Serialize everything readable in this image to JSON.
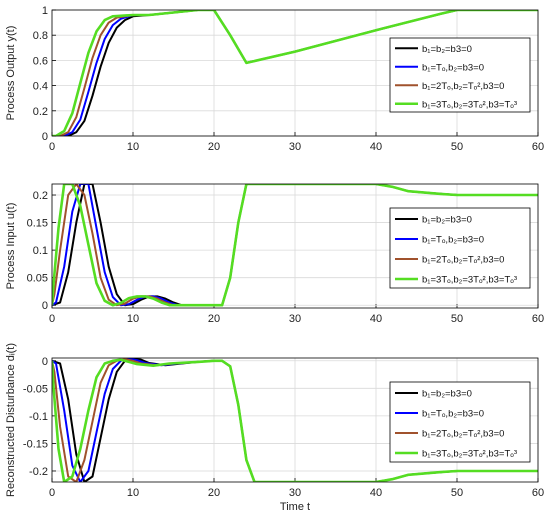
{
  "figure": {
    "xlabel": "Time t",
    "legend_labels": {
      "black": "b₁=b₂=b3=0",
      "blue": "b₁=Tₒ,b₂=b3=0",
      "brown": "b₁=2Tₒ,b₂=Tₒ²,b3=0",
      "green": "b₁=3Tₒ,b₂=3Tₒ²,b3=Tₒ³"
    },
    "colors": {
      "black": "#000000",
      "blue": "#0000ff",
      "brown": "#a0522d",
      "green": "#55dd22"
    }
  },
  "chart_data": [
    {
      "type": "line",
      "ylabel": "Process Output y(t)",
      "xlim": [
        0,
        60
      ],
      "ylim": [
        0,
        1
      ],
      "xticks": [
        0,
        10,
        20,
        30,
        40,
        50,
        60
      ],
      "yticks": [
        0,
        0.2,
        0.4,
        0.6,
        0.8,
        1
      ],
      "ytick_labels": [
        "0",
        "0.2",
        "0.4",
        "0.6",
        "0.8",
        "1"
      ],
      "grid": true,
      "legend": "right",
      "series": [
        {
          "name": "b₁=b₂=b3=0",
          "color": "#000000",
          "x": [
            0,
            2,
            3,
            4,
            5,
            6,
            7,
            8,
            9,
            10,
            12,
            15,
            18,
            20,
            22,
            24,
            30,
            40,
            48,
            50,
            60
          ],
          "y": [
            0,
            0,
            0.03,
            0.12,
            0.32,
            0.55,
            0.74,
            0.86,
            0.92,
            0.95,
            0.96,
            0.98,
            1,
            1,
            0.8,
            0.58,
            0.67,
            0.84,
            0.97,
            1,
            1
          ]
        },
        {
          "name": "b₁=Tₒ,b₂=b3=0",
          "color": "#0000ff",
          "x": [
            0,
            1.5,
            2.5,
            3.5,
            4.5,
            5.5,
            6.5,
            7.5,
            8.5,
            10,
            12,
            15,
            18,
            20,
            22,
            24,
            30,
            40,
            48,
            50,
            60
          ],
          "y": [
            0,
            0,
            0.03,
            0.13,
            0.35,
            0.58,
            0.77,
            0.88,
            0.93,
            0.96,
            0.96,
            0.98,
            1,
            1,
            0.8,
            0.58,
            0.67,
            0.84,
            0.97,
            1,
            1
          ]
        },
        {
          "name": "b₁=2Tₒ,b₂=Tₒ²,b3=0",
          "color": "#a0522d",
          "x": [
            0,
            1,
            2,
            3,
            4,
            5,
            6,
            7,
            8,
            10,
            12,
            15,
            18,
            20,
            22,
            24,
            30,
            40,
            48,
            50,
            60
          ],
          "y": [
            0,
            0,
            0.03,
            0.15,
            0.38,
            0.62,
            0.8,
            0.9,
            0.94,
            0.96,
            0.96,
            0.98,
            1,
            1,
            0.8,
            0.58,
            0.67,
            0.84,
            0.97,
            1,
            1
          ]
        },
        {
          "name": "b₁=3Tₒ,b₂=3Tₒ²,b3=Tₒ³",
          "color": "#55dd22",
          "x": [
            0,
            0.5,
            1.5,
            2.5,
            3.5,
            4.5,
            5.5,
            6.5,
            7.5,
            10,
            12,
            15,
            18,
            20,
            22,
            24,
            30,
            40,
            48,
            50,
            60
          ],
          "y": [
            0,
            0,
            0.04,
            0.18,
            0.42,
            0.66,
            0.83,
            0.92,
            0.95,
            0.96,
            0.96,
            0.98,
            1,
            1,
            0.8,
            0.58,
            0.67,
            0.84,
            0.97,
            1,
            1
          ]
        }
      ]
    },
    {
      "type": "line",
      "ylabel": "Process Input u(t)",
      "xlim": [
        0,
        60
      ],
      "ylim": [
        -0.005,
        0.22
      ],
      "xticks": [
        0,
        10,
        20,
        30,
        40,
        50,
        60
      ],
      "yticks": [
        0,
        0.05,
        0.1,
        0.15,
        0.2
      ],
      "ytick_labels": [
        "0",
        "0.05",
        "0.1",
        "0.15",
        "0.2"
      ],
      "grid": true,
      "legend": "right",
      "series": [
        {
          "name": "b₁=b₂=b3=0",
          "color": "#000000",
          "x": [
            0,
            1,
            2,
            3,
            4,
            5,
            6,
            7,
            8,
            9,
            10,
            11,
            12,
            13,
            14,
            15,
            16,
            18,
            21,
            22,
            23,
            24,
            40,
            42,
            44,
            48,
            50,
            60
          ],
          "y": [
            0,
            0.005,
            0.06,
            0.15,
            0.22,
            0.22,
            0.15,
            0.07,
            0.02,
            0,
            0.002,
            0.01,
            0.016,
            0.016,
            0.012,
            0.005,
            0,
            0,
            0,
            0.05,
            0.15,
            0.22,
            0.22,
            0.215,
            0.207,
            0.202,
            0.2,
            0.2
          ]
        },
        {
          "name": "b₁=Tₒ,b₂=b3=0",
          "color": "#0000ff",
          "x": [
            0,
            0.5,
            1.5,
            2.5,
            3.5,
            4.5,
            5.5,
            6.5,
            7.5,
            8.5,
            9.5,
            10.5,
            11.5,
            12.5,
            13.5,
            14.5,
            15.5,
            18,
            21,
            22,
            23,
            24,
            40,
            42,
            44,
            48,
            50,
            60
          ],
          "y": [
            0,
            0.005,
            0.07,
            0.17,
            0.22,
            0.22,
            0.14,
            0.06,
            0.015,
            0,
            0.002,
            0.01,
            0.016,
            0.016,
            0.012,
            0.005,
            0,
            0,
            0,
            0.05,
            0.15,
            0.22,
            0.22,
            0.215,
            0.207,
            0.202,
            0.2,
            0.2
          ]
        },
        {
          "name": "b₁=2Tₒ,b₂=Tₒ²,b3=0",
          "color": "#a0522d",
          "x": [
            0,
            0.3,
            1,
            2,
            3,
            4,
            5,
            6,
            7,
            8,
            9,
            10,
            11,
            12,
            13,
            14,
            15,
            18,
            21,
            22,
            23,
            24,
            40,
            42,
            44,
            48,
            50,
            60
          ],
          "y": [
            0,
            0.02,
            0.1,
            0.2,
            0.22,
            0.2,
            0.13,
            0.05,
            0.01,
            0,
            0.003,
            0.012,
            0.016,
            0.016,
            0.012,
            0.005,
            0,
            0,
            0,
            0.05,
            0.15,
            0.22,
            0.22,
            0.215,
            0.207,
            0.202,
            0.2,
            0.2
          ]
        },
        {
          "name": "b₁=3Tₒ,b₂=3Tₒ²,b3=Tₒ³",
          "color": "#55dd22",
          "x": [
            0,
            0.2,
            0.8,
            1.5,
            2.5,
            3.5,
            4.5,
            5.5,
            6.5,
            7.5,
            8.5,
            9.5,
            10.5,
            11.5,
            12.5,
            13.5,
            14.5,
            18,
            21,
            22,
            23,
            24,
            40,
            42,
            44,
            48,
            50,
            60
          ],
          "y": [
            0,
            0.04,
            0.14,
            0.22,
            0.22,
            0.18,
            0.11,
            0.04,
            0.008,
            0,
            0.004,
            0.013,
            0.016,
            0.016,
            0.012,
            0.005,
            0,
            0,
            0,
            0.05,
            0.15,
            0.22,
            0.22,
            0.215,
            0.207,
            0.202,
            0.2,
            0.2
          ]
        }
      ]
    },
    {
      "type": "line",
      "ylabel": "Reconstructed Disturbance dᵢ(t)",
      "xlim": [
        0,
        60
      ],
      "ylim": [
        -0.22,
        0.005
      ],
      "xticks": [
        0,
        10,
        20,
        30,
        40,
        50,
        60
      ],
      "yticks": [
        0,
        -0.05,
        -0.1,
        -0.15,
        -0.2
      ],
      "ytick_labels": [
        "0",
        "-0.05",
        "-0.1",
        "-0.15",
        "-0.2"
      ],
      "grid": true,
      "legend": "right",
      "series": [
        {
          "name": "b₁=b₂=b3=0",
          "color": "#000000",
          "x": [
            0,
            1,
            2,
            3,
            4,
            5,
            6,
            7,
            8,
            9,
            10,
            11,
            12,
            14,
            16,
            18,
            20,
            21,
            22,
            23,
            24,
            25,
            40,
            42,
            44,
            48,
            50,
            60
          ],
          "y": [
            0,
            -0.005,
            -0.07,
            -0.17,
            -0.22,
            -0.21,
            -0.14,
            -0.07,
            -0.02,
            0,
            0.005,
            0.002,
            -0.004,
            -0.008,
            -0.005,
            -0.002,
            0,
            0,
            -0.01,
            -0.08,
            -0.18,
            -0.22,
            -0.22,
            -0.215,
            -0.207,
            -0.202,
            -0.2,
            -0.2
          ]
        },
        {
          "name": "b₁=Tₒ,b₂=b3=0",
          "color": "#0000ff",
          "x": [
            0,
            0.5,
            1.5,
            2.5,
            3.5,
            4.5,
            5.5,
            6.5,
            7.5,
            8.5,
            9.5,
            10.5,
            11.5,
            13.5,
            15.5,
            18,
            20,
            21,
            22,
            23,
            24,
            25,
            40,
            42,
            44,
            48,
            50,
            60
          ],
          "y": [
            0,
            -0.005,
            -0.09,
            -0.19,
            -0.22,
            -0.2,
            -0.13,
            -0.06,
            -0.015,
            0,
            0.004,
            0.001,
            -0.004,
            -0.008,
            -0.005,
            -0.002,
            0,
            0,
            -0.01,
            -0.08,
            -0.18,
            -0.22,
            -0.22,
            -0.215,
            -0.207,
            -0.202,
            -0.2,
            -0.2
          ]
        },
        {
          "name": "b₁=2Tₒ,b₂=Tₒ²,b3=0",
          "color": "#a0522d",
          "x": [
            0,
            0.3,
            1,
            2,
            3,
            4,
            5,
            6,
            7,
            8,
            9,
            10,
            11,
            13,
            15,
            18,
            20,
            21,
            22,
            23,
            24,
            25,
            40,
            42,
            44,
            48,
            50,
            60
          ],
          "y": [
            0,
            -0.02,
            -0.12,
            -0.21,
            -0.22,
            -0.18,
            -0.11,
            -0.04,
            -0.008,
            0,
            0.003,
            0,
            -0.005,
            -0.008,
            -0.005,
            -0.002,
            0,
            0,
            -0.01,
            -0.08,
            -0.18,
            -0.22,
            -0.22,
            -0.215,
            -0.207,
            -0.202,
            -0.2,
            -0.2
          ]
        },
        {
          "name": "b₁=3Tₒ,b₂=3Tₒ²,b3=Tₒ³",
          "color": "#55dd22",
          "x": [
            0,
            0.2,
            0.8,
            1.5,
            2.5,
            3.5,
            4.5,
            5.5,
            6.5,
            7.5,
            8.5,
            9.5,
            10.5,
            12.5,
            14.5,
            18,
            20,
            21,
            22,
            23,
            24,
            25,
            40,
            42,
            44,
            48,
            50,
            60
          ],
          "y": [
            0,
            -0.05,
            -0.16,
            -0.22,
            -0.21,
            -0.16,
            -0.09,
            -0.03,
            -0.005,
            0,
            0.002,
            -0.002,
            -0.006,
            -0.009,
            -0.005,
            -0.002,
            0,
            0,
            -0.01,
            -0.08,
            -0.18,
            -0.22,
            -0.22,
            -0.215,
            -0.207,
            -0.202,
            -0.2,
            -0.2
          ]
        }
      ]
    }
  ]
}
